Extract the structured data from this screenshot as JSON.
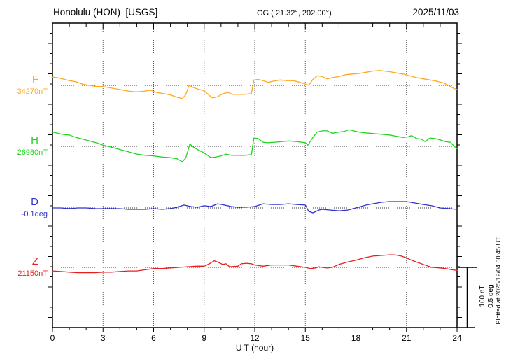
{
  "header": {
    "station": "Honolulu (HON)  [USGS]",
    "coords": "GG ( 21.32°, 202.00°)",
    "date": "2025/11/03"
  },
  "components": [
    {
      "letter": "F",
      "value": "34270nT",
      "color": "#FFA81E"
    },
    {
      "letter": "H",
      "value": "26980nT",
      "color": "#1FD421"
    },
    {
      "letter": "D",
      "value": "-0.1deg",
      "color": "#3030CE"
    },
    {
      "letter": "Z",
      "value": "21150nT",
      "color": "#E51F1F"
    }
  ],
  "scalebar": {
    "line1": "100 nT",
    "line2": "0.5 deg"
  },
  "footer": {
    "plotted": "Plotted at 2025/12/04 00:45 UT"
  },
  "chart_data": {
    "type": "line",
    "title": "Honolulu (HON) [USGS] magnetogram",
    "date": "2025/11/03",
    "xlabel": "U T (hour)",
    "x_range": [
      0,
      24
    ],
    "x_ticks": [
      0,
      3,
      6,
      9,
      12,
      15,
      18,
      21,
      24
    ],
    "grid": "dotted vertical gridlines every 3 h; dotted horizontal baseline per trace",
    "legend_position": "left margin, one colored label per trace",
    "scale_bar": {
      "nT": 100,
      "deg": 0.5
    },
    "series": [
      {
        "name": "F",
        "baseline": 34270,
        "units": "nT",
        "color": "#FFA81E",
        "points": [
          [
            0,
            14
          ],
          [
            0.3,
            13
          ],
          [
            0.6,
            11
          ],
          [
            1,
            8
          ],
          [
            1.4,
            6
          ],
          [
            1.8,
            2
          ],
          [
            2.2,
            0
          ],
          [
            2.6,
            -2
          ],
          [
            3,
            -2
          ],
          [
            3.4,
            -4
          ],
          [
            3.8,
            -6
          ],
          [
            4.2,
            -8
          ],
          [
            4.6,
            -10
          ],
          [
            5,
            -11
          ],
          [
            5.4,
            -10
          ],
          [
            5.8,
            -8
          ],
          [
            6.2,
            -12
          ],
          [
            6.6,
            -14
          ],
          [
            7,
            -16
          ],
          [
            7.4,
            -20
          ],
          [
            7.7,
            -22
          ],
          [
            7.9,
            -16
          ],
          [
            8.1,
            0
          ],
          [
            8.3,
            -3
          ],
          [
            8.6,
            -6
          ],
          [
            9,
            -9
          ],
          [
            9.3,
            -17
          ],
          [
            9.5,
            -21
          ],
          [
            9.8,
            -19
          ],
          [
            10.1,
            -14
          ],
          [
            10.4,
            -12
          ],
          [
            10.7,
            -15
          ],
          [
            11,
            -15
          ],
          [
            11.4,
            -15
          ],
          [
            11.8,
            -14
          ],
          [
            11.95,
            9
          ],
          [
            12.2,
            10
          ],
          [
            12.5,
            8
          ],
          [
            12.8,
            5
          ],
          [
            13.1,
            7
          ],
          [
            13.5,
            9
          ],
          [
            13.9,
            8
          ],
          [
            14.3,
            8
          ],
          [
            14.7,
            5
          ],
          [
            15,
            2
          ],
          [
            15.2,
            0
          ],
          [
            15.45,
            10
          ],
          [
            15.7,
            16
          ],
          [
            16,
            15
          ],
          [
            16.3,
            11
          ],
          [
            16.6,
            13
          ],
          [
            17,
            15
          ],
          [
            17.4,
            18
          ],
          [
            17.8,
            19
          ],
          [
            18.2,
            20
          ],
          [
            18.6,
            22
          ],
          [
            19,
            24
          ],
          [
            19.4,
            25
          ],
          [
            19.7,
            24
          ],
          [
            20,
            23
          ],
          [
            20.4,
            21
          ],
          [
            20.8,
            19
          ],
          [
            21.2,
            16
          ],
          [
            21.6,
            13
          ],
          [
            22,
            11
          ],
          [
            22.4,
            9
          ],
          [
            22.8,
            7
          ],
          [
            23.2,
            4
          ],
          [
            23.5,
            0
          ],
          [
            23.8,
            -5
          ],
          [
            24,
            -7
          ]
        ]
      },
      {
        "name": "H",
        "baseline": 26980,
        "units": "nT",
        "color": "#1FD421",
        "points": [
          [
            0,
            24
          ],
          [
            0.3,
            22
          ],
          [
            0.6,
            20
          ],
          [
            1,
            19
          ],
          [
            1.4,
            15
          ],
          [
            1.8,
            12
          ],
          [
            2.2,
            9
          ],
          [
            2.6,
            6
          ],
          [
            3,
            2
          ],
          [
            3.3,
            0
          ],
          [
            3.7,
            -3
          ],
          [
            4.1,
            -6
          ],
          [
            4.5,
            -9
          ],
          [
            5,
            -13
          ],
          [
            5.5,
            -15
          ],
          [
            6,
            -16
          ],
          [
            6.5,
            -18
          ],
          [
            7,
            -19
          ],
          [
            7.4,
            -21
          ],
          [
            7.7,
            -26
          ],
          [
            7.9,
            -20
          ],
          [
            8.15,
            4
          ],
          [
            8.4,
            -2
          ],
          [
            8.7,
            -7
          ],
          [
            9,
            -11
          ],
          [
            9.4,
            -19
          ],
          [
            9.7,
            -18
          ],
          [
            10,
            -16
          ],
          [
            10.3,
            -13
          ],
          [
            10.6,
            -15
          ],
          [
            11,
            -15
          ],
          [
            11.4,
            -15
          ],
          [
            11.8,
            -14
          ],
          [
            11.95,
            14
          ],
          [
            12.2,
            13
          ],
          [
            12.5,
            7
          ],
          [
            12.8,
            6
          ],
          [
            13.2,
            7
          ],
          [
            13.6,
            8
          ],
          [
            14,
            9
          ],
          [
            14.5,
            8
          ],
          [
            15,
            6
          ],
          [
            15.15,
            2
          ],
          [
            15.45,
            15
          ],
          [
            15.7,
            24
          ],
          [
            16,
            26
          ],
          [
            16.3,
            26
          ],
          [
            16.6,
            22
          ],
          [
            17,
            24
          ],
          [
            17.3,
            25
          ],
          [
            17.6,
            28
          ],
          [
            18,
            25
          ],
          [
            18.4,
            23
          ],
          [
            18.8,
            22
          ],
          [
            19.2,
            21
          ],
          [
            19.6,
            20
          ],
          [
            20,
            19
          ],
          [
            20.4,
            17
          ],
          [
            20.8,
            15
          ],
          [
            21.1,
            16
          ],
          [
            21.3,
            18
          ],
          [
            21.6,
            13
          ],
          [
            21.9,
            12
          ],
          [
            22.1,
            8
          ],
          [
            22.4,
            14
          ],
          [
            22.7,
            13
          ],
          [
            23,
            11
          ],
          [
            23.3,
            8
          ],
          [
            23.6,
            7
          ],
          [
            23.8,
            1
          ],
          [
            24,
            -4
          ]
        ]
      },
      {
        "name": "D",
        "baseline": -0.1,
        "units": "deg",
        "color": "#3030CE",
        "points": [
          [
            0,
            0
          ],
          [
            0.5,
            0
          ],
          [
            1,
            -0.006
          ],
          [
            1.5,
            0
          ],
          [
            2,
            0
          ],
          [
            2.5,
            -0.006
          ],
          [
            3,
            -0.006
          ],
          [
            3.5,
            -0.006
          ],
          [
            4,
            -0.006
          ],
          [
            4.5,
            -0.012
          ],
          [
            5,
            -0.012
          ],
          [
            5.5,
            -0.012
          ],
          [
            6,
            -0.006
          ],
          [
            6.5,
            -0.012
          ],
          [
            7,
            -0.006
          ],
          [
            7.4,
            0.006
          ],
          [
            7.8,
            0.024
          ],
          [
            8.2,
            0.012
          ],
          [
            8.6,
            0.006
          ],
          [
            9,
            0.018
          ],
          [
            9.4,
            0.012
          ],
          [
            9.8,
            0.035
          ],
          [
            10.2,
            0.024
          ],
          [
            10.6,
            0.012
          ],
          [
            11,
            0.006
          ],
          [
            11.5,
            0.006
          ],
          [
            12,
            0.012
          ],
          [
            12.5,
            0.035
          ],
          [
            13,
            0.029
          ],
          [
            13.5,
            0.029
          ],
          [
            14,
            0.035
          ],
          [
            14.5,
            0.029
          ],
          [
            15,
            0.024
          ],
          [
            15.2,
            -0.029
          ],
          [
            15.45,
            -0.041
          ],
          [
            15.8,
            -0.018
          ],
          [
            16,
            -0.012
          ],
          [
            16.5,
            -0.018
          ],
          [
            17,
            -0.024
          ],
          [
            17.5,
            -0.018
          ],
          [
            18,
            0
          ],
          [
            18.3,
            0.012
          ],
          [
            18.6,
            0.024
          ],
          [
            19,
            0.035
          ],
          [
            19.5,
            0.047
          ],
          [
            20,
            0.053
          ],
          [
            20.5,
            0.053
          ],
          [
            21,
            0.053
          ],
          [
            21.5,
            0.041
          ],
          [
            22,
            0.029
          ],
          [
            22.5,
            0.018
          ],
          [
            23,
            0
          ],
          [
            23.5,
            -0.006
          ],
          [
            24,
            -0.012
          ]
        ]
      },
      {
        "name": "Z",
        "baseline": 21150,
        "units": "nT",
        "color": "#E51F1F",
        "points": [
          [
            0,
            -6
          ],
          [
            0.5,
            -7
          ],
          [
            1,
            -8
          ],
          [
            1.5,
            -9
          ],
          [
            2,
            -9
          ],
          [
            2.5,
            -9
          ],
          [
            3,
            -8
          ],
          [
            3.5,
            -8
          ],
          [
            4,
            -7
          ],
          [
            4.5,
            -6
          ],
          [
            5,
            -6
          ],
          [
            5.5,
            -4
          ],
          [
            6,
            -2
          ],
          [
            6.5,
            -2
          ],
          [
            7,
            -1
          ],
          [
            7.5,
            0
          ],
          [
            8,
            1
          ],
          [
            8.5,
            2
          ],
          [
            9,
            2
          ],
          [
            9.3,
            6
          ],
          [
            9.6,
            11
          ],
          [
            9.8,
            9
          ],
          [
            10.1,
            5
          ],
          [
            10.3,
            6
          ],
          [
            10.5,
            1
          ],
          [
            11,
            2
          ],
          [
            11.2,
            6
          ],
          [
            11.5,
            7
          ],
          [
            11.8,
            6
          ],
          [
            12,
            4
          ],
          [
            12.5,
            2
          ],
          [
            13,
            4
          ],
          [
            13.5,
            4
          ],
          [
            14,
            4
          ],
          [
            14.5,
            2
          ],
          [
            15,
            0
          ],
          [
            15.3,
            -2
          ],
          [
            15.6,
            -1
          ],
          [
            15.8,
            1
          ],
          [
            16,
            0
          ],
          [
            16.3,
            -1
          ],
          [
            16.6,
            0
          ],
          [
            17,
            5
          ],
          [
            17.5,
            9
          ],
          [
            18,
            12
          ],
          [
            18.5,
            16
          ],
          [
            19,
            19
          ],
          [
            19.5,
            20
          ],
          [
            20,
            21
          ],
          [
            20.3,
            21
          ],
          [
            20.7,
            19
          ],
          [
            21,
            16
          ],
          [
            21.3,
            12
          ],
          [
            21.7,
            8
          ],
          [
            22,
            5
          ],
          [
            22.5,
            0
          ],
          [
            23,
            -1
          ],
          [
            23.3,
            -2
          ],
          [
            23.7,
            -4
          ],
          [
            24,
            -5
          ]
        ]
      }
    ]
  }
}
